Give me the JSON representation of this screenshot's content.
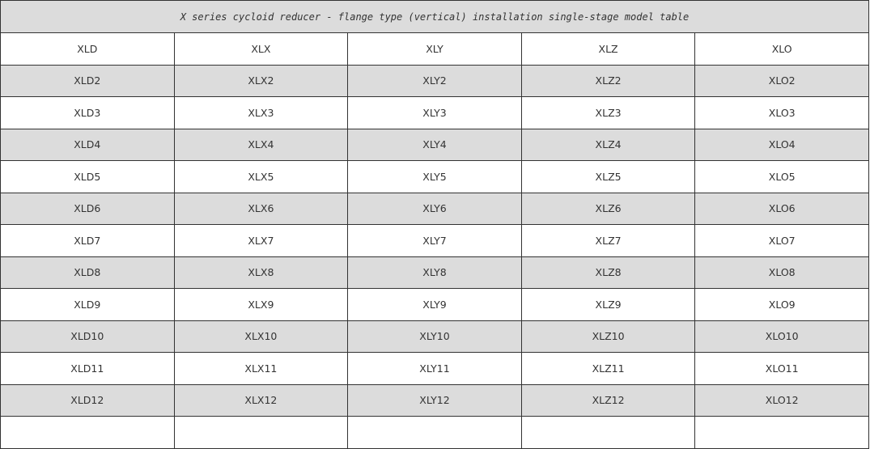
{
  "table": {
    "title": "X series cycloid reducer - flange type (vertical) installation single-stage model table",
    "headers": [
      "XLD",
      "XLX",
      "XLY",
      "XLZ",
      "XLO"
    ],
    "rows": [
      [
        "XLD2",
        "XLX2",
        "XLY2",
        "XLZ2",
        "XLO2"
      ],
      [
        "XLD3",
        "XLX3",
        "XLY3",
        "XLZ3",
        "XLO3"
      ],
      [
        "XLD4",
        "XLX4",
        "XLY4",
        "XLZ4",
        "XLO4"
      ],
      [
        "XLD5",
        "XLX5",
        "XLY5",
        "XLZ5",
        "XLO5"
      ],
      [
        "XLD6",
        "XLX6",
        "XLY6",
        "XLZ6",
        "XLO6"
      ],
      [
        "XLD7",
        "XLX7",
        "XLY7",
        "XLZ7",
        "XLO7"
      ],
      [
        "XLD8",
        "XLX8",
        "XLY8",
        "XLZ8",
        "XLO8"
      ],
      [
        "XLD9",
        "XLX9",
        "XLY9",
        "XLZ9",
        "XLO9"
      ],
      [
        "XLD10",
        "XLX10",
        "XLY10",
        "XLZ10",
        "XLO10"
      ],
      [
        "XLD11",
        "XLX11",
        "XLY11",
        "XLZ11",
        "XLO11"
      ],
      [
        "XLD12",
        "XLX12",
        "XLY12",
        "XLZ12",
        "XLO12"
      ],
      [
        "",
        "",
        "",
        "",
        ""
      ]
    ]
  }
}
